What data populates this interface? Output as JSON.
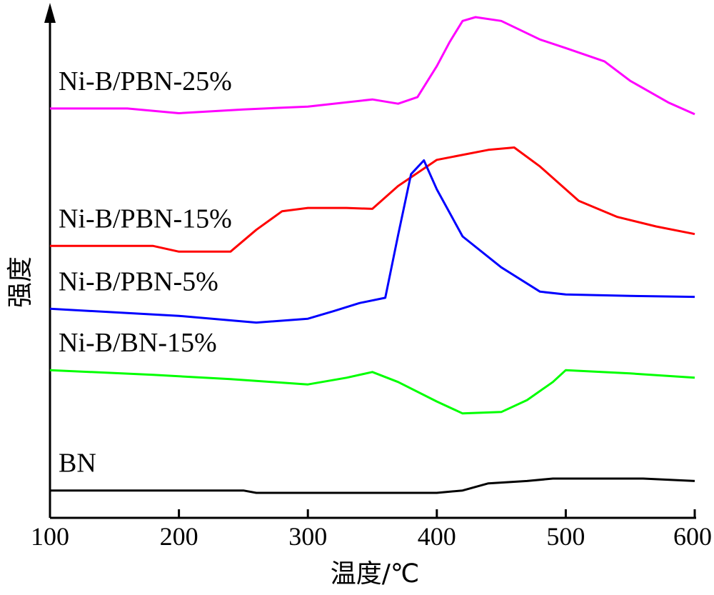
{
  "chart_data": {
    "type": "line",
    "xlabel": "温度/℃",
    "ylabel": "强度",
    "xlim": [
      100,
      600
    ],
    "ylim": [
      0,
      10
    ],
    "x_ticks": [
      "100",
      "200",
      "300",
      "400",
      "500",
      "600"
    ],
    "grid": false,
    "legend": "inline-labels",
    "series": [
      {
        "name": "Ni-B/PBN-25%",
        "color": "#ff00ff",
        "points": [
          [
            100,
            8.08
          ],
          [
            160,
            8.08
          ],
          [
            200,
            7.98
          ],
          [
            250,
            8.06
          ],
          [
            300,
            8.12
          ],
          [
            350,
            8.27
          ],
          [
            370,
            8.18
          ],
          [
            385,
            8.32
          ],
          [
            400,
            8.97
          ],
          [
            410,
            9.48
          ],
          [
            420,
            9.92
          ],
          [
            430,
            10.0
          ],
          [
            450,
            9.92
          ],
          [
            480,
            9.53
          ],
          [
            500,
            9.35
          ],
          [
            530,
            9.07
          ],
          [
            550,
            8.66
          ],
          [
            580,
            8.2
          ],
          [
            600,
            7.96
          ]
        ]
      },
      {
        "name": "Ni-B/PBN-15%",
        "color": "#ff0000",
        "points": [
          [
            100,
            5.19
          ],
          [
            180,
            5.19
          ],
          [
            200,
            5.07
          ],
          [
            240,
            5.07
          ],
          [
            260,
            5.53
          ],
          [
            280,
            5.92
          ],
          [
            300,
            5.99
          ],
          [
            330,
            5.99
          ],
          [
            350,
            5.97
          ],
          [
            370,
            6.45
          ],
          [
            400,
            7.0
          ],
          [
            440,
            7.21
          ],
          [
            460,
            7.26
          ],
          [
            480,
            6.86
          ],
          [
            510,
            6.14
          ],
          [
            540,
            5.8
          ],
          [
            570,
            5.6
          ],
          [
            600,
            5.44
          ]
        ]
      },
      {
        "name": "Ni-B/PBN-5%",
        "color": "#0000ff",
        "points": [
          [
            100,
            3.87
          ],
          [
            200,
            3.72
          ],
          [
            260,
            3.58
          ],
          [
            300,
            3.66
          ],
          [
            320,
            3.82
          ],
          [
            340,
            3.99
          ],
          [
            360,
            4.1
          ],
          [
            370,
            5.42
          ],
          [
            380,
            6.7
          ],
          [
            390,
            6.99
          ],
          [
            400,
            6.38
          ],
          [
            420,
            5.39
          ],
          [
            450,
            4.74
          ],
          [
            480,
            4.23
          ],
          [
            500,
            4.17
          ],
          [
            550,
            4.14
          ],
          [
            600,
            4.12
          ]
        ]
      },
      {
        "name": "Ni-B/BN-15%",
        "color": "#00ff00",
        "points": [
          [
            100,
            2.58
          ],
          [
            180,
            2.48
          ],
          [
            240,
            2.39
          ],
          [
            300,
            2.28
          ],
          [
            330,
            2.42
          ],
          [
            350,
            2.54
          ],
          [
            370,
            2.33
          ],
          [
            400,
            1.92
          ],
          [
            420,
            1.67
          ],
          [
            450,
            1.7
          ],
          [
            470,
            1.95
          ],
          [
            490,
            2.33
          ],
          [
            500,
            2.58
          ],
          [
            550,
            2.51
          ],
          [
            600,
            2.42
          ]
        ]
      },
      {
        "name": "BN",
        "color": "#000000",
        "points": [
          [
            100,
            0.05
          ],
          [
            250,
            0.05
          ],
          [
            260,
            0.0
          ],
          [
            400,
            0.0
          ],
          [
            420,
            0.05
          ],
          [
            440,
            0.2
          ],
          [
            470,
            0.25
          ],
          [
            490,
            0.3
          ],
          [
            560,
            0.3
          ],
          [
            600,
            0.25
          ]
        ]
      }
    ]
  }
}
